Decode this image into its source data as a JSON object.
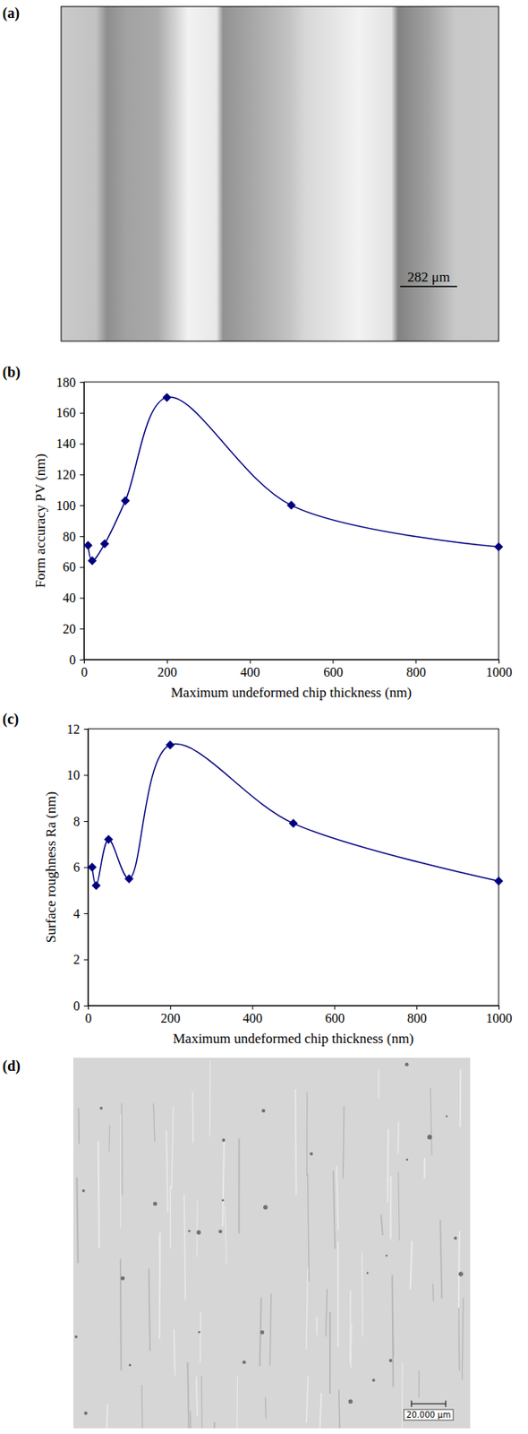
{
  "chart_data": [
    {
      "type": "image",
      "panel_label": "(a)",
      "scale_bar": "282 μm"
    },
    {
      "type": "line",
      "panel_label": "(b)",
      "x_label": "Maximum undeformed chip thickness (nm)",
      "y_label": "Form accuracy PV (nm)",
      "x": [
        10,
        20,
        50,
        100,
        200,
        500,
        1000
      ],
      "values": [
        74,
        64,
        75,
        103,
        170,
        100,
        73
      ],
      "color": "#000080",
      "marker": "diamond",
      "line_style": "smooth",
      "xlim": [
        0,
        1000
      ],
      "xticks": [
        0,
        200,
        400,
        600,
        800,
        1000
      ],
      "ylim": [
        0,
        180
      ],
      "yticks": [
        0,
        20,
        40,
        60,
        80,
        100,
        120,
        140,
        160,
        180
      ]
    },
    {
      "type": "line",
      "panel_label": "(c)",
      "x_label": "Maximum undeformed chip thickness (nm)",
      "y_label": "Surface roughness Ra (nm)",
      "x": [
        10,
        20,
        50,
        100,
        200,
        500,
        1000
      ],
      "values": [
        6.0,
        5.2,
        7.2,
        5.5,
        11.3,
        7.9,
        5.4
      ],
      "color": "#000080",
      "marker": "diamond",
      "line_style": "smooth",
      "xlim": [
        0,
        1000
      ],
      "xticks": [
        0,
        200,
        400,
        600,
        800,
        1000
      ],
      "ylim": [
        0,
        12
      ],
      "yticks": [
        0,
        2,
        4,
        6,
        8,
        10,
        12
      ]
    },
    {
      "type": "image",
      "panel_label": "(d)",
      "scale_bar": "20.000 μm"
    }
  ]
}
